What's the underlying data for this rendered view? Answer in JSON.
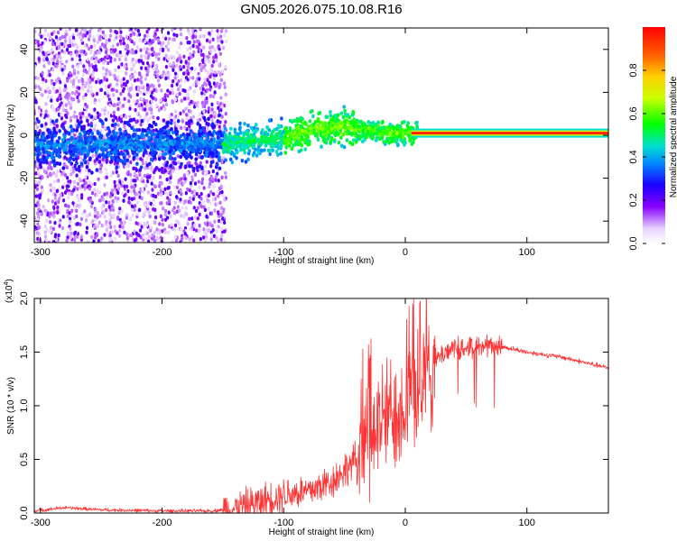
{
  "title": "GN05.2026.075.10.08.R16",
  "chart_data": [
    {
      "type": "heatmap",
      "xlabel": "Height of straight line (km)",
      "ylabel": "Frequency (Hz)",
      "xlim": [
        -305,
        167
      ],
      "ylim": [
        -50,
        50
      ],
      "xticks": [
        -300,
        -200,
        -100,
        0,
        100
      ],
      "yticks": [
        -40,
        -20,
        0,
        20,
        40
      ],
      "xtick_labels": [
        "-300",
        "-200",
        "-100",
        "0",
        "100"
      ],
      "ytick_labels": [
        "-40",
        "-20",
        "0",
        "20",
        "40"
      ],
      "colorbar": {
        "label": "Normalized spectral amplitude",
        "range": [
          0,
          1
        ],
        "ticks": [
          0,
          0.2,
          0.4,
          0.6,
          0.8
        ],
        "tick_labels": [
          "0.0",
          "0.2",
          "0.4",
          "0.6",
          "0.8"
        ]
      },
      "ridge": {
        "description_points": [
          [
            -300,
            -5
          ],
          [
            -250,
            -4
          ],
          [
            -200,
            -4
          ],
          [
            -150,
            -4
          ],
          [
            -100,
            -1
          ],
          [
            -75,
            3
          ],
          [
            -50,
            4
          ],
          [
            -30,
            2
          ],
          [
            -10,
            1
          ],
          [
            10,
            1
          ],
          [
            100,
            1
          ],
          [
            167,
            1
          ]
        ]
      }
    },
    {
      "type": "line",
      "xlabel": "Height of straight line (km)",
      "ylabel": "SNR (10 * v/v)",
      "multiplier_label": "(x10",
      "multiplier_exponent": "4",
      "xlim": [
        -305,
        167
      ],
      "ylim": [
        0,
        2.0
      ],
      "xticks": [
        -300,
        -200,
        -100,
        0,
        100
      ],
      "yticks": [
        0,
        0.5,
        1.0,
        1.5,
        2.0
      ],
      "xtick_labels": [
        "-300",
        "-200",
        "-100",
        "0",
        "100"
      ],
      "ytick_labels": [
        "0.0",
        "0.5",
        "1.0",
        "1.5",
        "2.0"
      ],
      "series": [
        {
          "name": "SNR",
          "color": "#ff3333",
          "envelope_x": [
            -305,
            -280,
            -250,
            -200,
            -160,
            -140,
            -120,
            -100,
            -80,
            -60,
            -40,
            -30,
            -20,
            -10,
            0,
            10,
            20,
            30,
            40,
            50,
            60,
            70,
            80,
            100,
            130,
            167
          ],
          "envelope_y": [
            0.02,
            0.05,
            0.03,
            0.02,
            0.02,
            0.04,
            0.1,
            0.18,
            0.2,
            0.3,
            0.5,
            0.7,
            0.85,
            0.95,
            1.05,
            1.2,
            1.35,
            1.48,
            1.55,
            1.55,
            1.55,
            1.57,
            1.55,
            1.5,
            1.45,
            1.35
          ]
        }
      ]
    }
  ]
}
